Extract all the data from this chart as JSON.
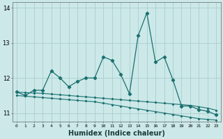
{
  "title": "",
  "xlabel": "Humidex (Indice chaleur)",
  "bg_color": "#cce8e8",
  "line_color": "#1a7070",
  "grid_color": "#aacece",
  "x": [
    0,
    1,
    2,
    3,
    4,
    5,
    6,
    7,
    8,
    9,
    10,
    11,
    12,
    13,
    14,
    15,
    16,
    17,
    18,
    19,
    20,
    21,
    22,
    23
  ],
  "y_main": [
    11.6,
    11.5,
    11.65,
    11.65,
    12.2,
    12.0,
    11.75,
    11.9,
    12.0,
    12.0,
    12.6,
    12.5,
    12.1,
    11.55,
    13.2,
    13.85,
    12.45,
    12.6,
    11.95,
    11.2,
    11.2,
    11.1,
    11.05,
    10.95
  ],
  "y_line1": [
    11.6,
    11.58,
    11.57,
    11.56,
    11.54,
    11.52,
    11.5,
    11.48,
    11.46,
    11.44,
    11.42,
    11.4,
    11.38,
    11.36,
    11.34,
    11.32,
    11.3,
    11.28,
    11.26,
    11.24,
    11.22,
    11.18,
    11.14,
    11.08
  ],
  "y_line2": [
    11.5,
    11.48,
    11.46,
    11.44,
    11.42,
    11.4,
    11.38,
    11.36,
    11.34,
    11.32,
    11.28,
    11.24,
    11.2,
    11.16,
    11.12,
    11.08,
    11.04,
    11.0,
    10.96,
    10.92,
    10.88,
    10.84,
    10.82,
    10.8
  ],
  "ylim": [
    10.75,
    14.15
  ],
  "yticks": [
    11,
    12,
    13,
    14
  ],
  "xticks": [
    0,
    1,
    2,
    3,
    4,
    5,
    6,
    7,
    8,
    9,
    10,
    11,
    12,
    13,
    14,
    15,
    16,
    17,
    18,
    19,
    20,
    21,
    22,
    23
  ]
}
